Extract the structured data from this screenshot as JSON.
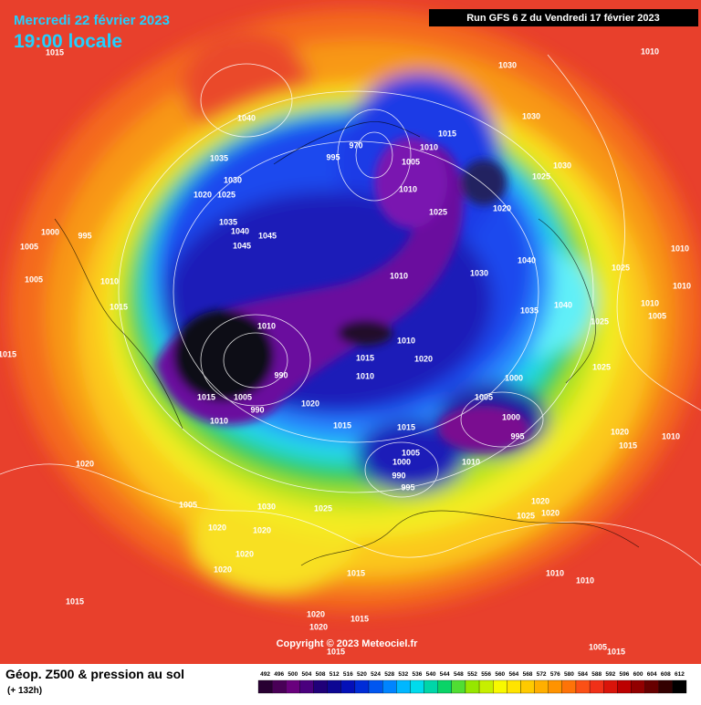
{
  "header": {
    "date": "Mercredi 22 février 2023",
    "time": "19:00 locale",
    "run": "Run GFS 6 Z du Vendredi 17 février 2023"
  },
  "footer": {
    "title": "Géop. Z500 & pression au sol",
    "subtitle": "(+ 132h)",
    "copyright": "Copyright © 2023 Meteociel.fr"
  },
  "legend": {
    "values": [
      492,
      496,
      500,
      504,
      508,
      512,
      516,
      520,
      524,
      528,
      532,
      536,
      540,
      544,
      548,
      552,
      556,
      560,
      564,
      568,
      572,
      576,
      580,
      584,
      588,
      592,
      596,
      600,
      604,
      608,
      612
    ]
  },
  "isobar_labels": [
    1015,
    1030,
    1010,
    1040,
    1015,
    970,
    1010,
    1030,
    1035,
    995,
    1005,
    1030,
    1030,
    1025,
    1020,
    1025,
    1010,
    1025,
    1020,
    1035,
    1000,
    995,
    1040,
    1045,
    1045,
    1005,
    1010,
    1040,
    1025,
    1030,
    1010,
    1005,
    1010,
    1010,
    1015,
    1035,
    1040,
    1010,
    1005,
    1010,
    1025,
    1015,
    1015,
    1020,
    1010,
    1010,
    1025,
    990,
    1000,
    1015,
    1005,
    1005,
    1020,
    990,
    1000,
    1010,
    1015,
    1015,
    995,
    1020,
    1010,
    1015,
    1005,
    1000,
    1010,
    1020,
    990,
    995,
    1005,
    1030,
    1025,
    1020,
    1025,
    1020,
    1020,
    1020,
    1020,
    1020,
    1015,
    1010,
    1010,
    1015,
    1020,
    1015,
    1020,
    1005,
    1015,
    1015
  ]
}
